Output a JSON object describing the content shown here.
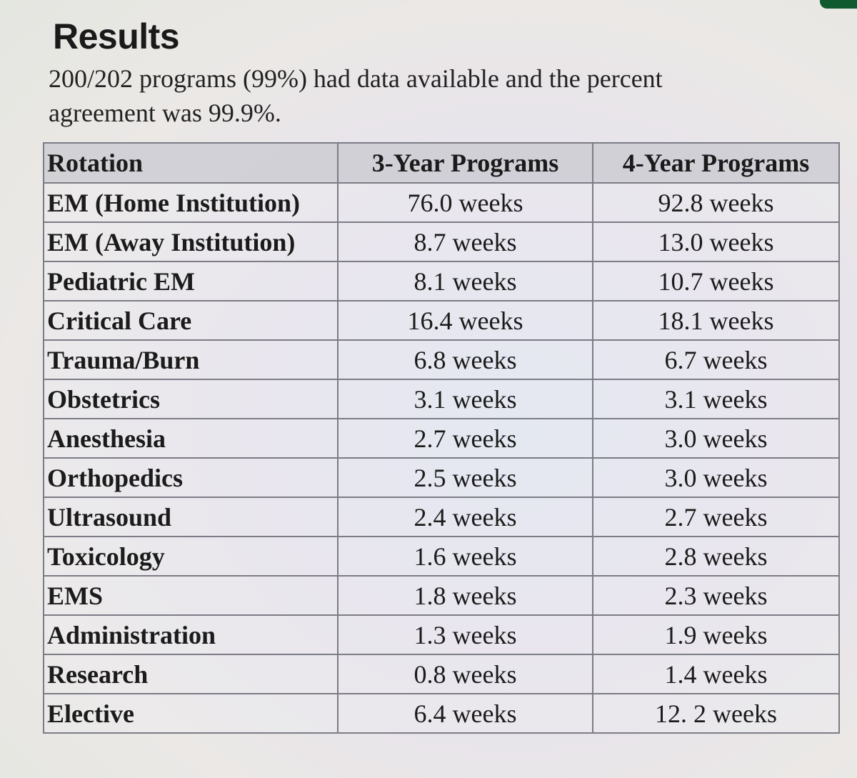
{
  "title": "Results",
  "summary": "200/202 programs (99%) had data available and the percent agreement was 99.9%.",
  "table": {
    "headers": [
      "Rotation",
      "3-Year Programs",
      "4-Year Programs"
    ],
    "rows": [
      [
        "EM (Home Institution)",
        "76.0 weeks",
        "92.8 weeks"
      ],
      [
        "EM (Away Institution)",
        "8.7 weeks",
        "13.0 weeks"
      ],
      [
        "Pediatric EM",
        "8.1 weeks",
        "10.7 weeks"
      ],
      [
        "Critical Care",
        "16.4 weeks",
        "18.1 weeks"
      ],
      [
        "Trauma/Burn",
        "6.8 weeks",
        "6.7 weeks"
      ],
      [
        "Obstetrics",
        "3.1 weeks",
        "3.1 weeks"
      ],
      [
        "Anesthesia",
        "2.7 weeks",
        "3.0 weeks"
      ],
      [
        "Orthopedics",
        "2.5 weeks",
        "3.0 weeks"
      ],
      [
        "Ultrasound",
        "2.4 weeks",
        "2.7 weeks"
      ],
      [
        "Toxicology",
        "1.6 weeks",
        "2.8 weeks"
      ],
      [
        "EMS",
        "1.8 weeks",
        "2.3 weeks"
      ],
      [
        "Administration",
        "1.3 weeks",
        "1.9 weeks"
      ],
      [
        "Research",
        "0.8 weeks",
        "1.4 weeks"
      ],
      [
        "Elective",
        "6.4 weeks",
        "12. 2 weeks"
      ]
    ]
  },
  "colors": {
    "heading": "#1a1a1a",
    "accent": "#0f5a2e",
    "grid": "#7c7c86",
    "header_bg": "#cdcdd4"
  }
}
